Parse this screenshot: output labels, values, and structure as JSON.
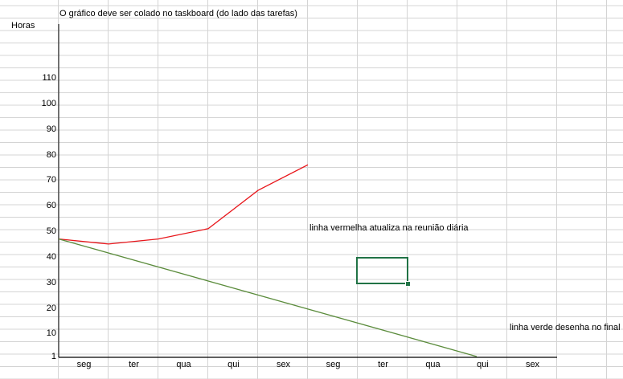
{
  "note_top": "O gráfico deve ser colado no taskboard (do lado das tarefas)",
  "note_red": "linha vermelha atualiza na reunião diária",
  "note_green": "linha verde desenha no final d",
  "colors": {
    "gridline": "#d4d4d4",
    "axis": "#000000",
    "red_line": "#e8161b",
    "green_line": "#5b8c3c",
    "selection": "#217346"
  },
  "chart_data": {
    "type": "line",
    "ylabel": "Horas",
    "yticks": [
      "110",
      "100",
      "90",
      "80",
      "70",
      "60",
      "50",
      "40",
      "30",
      "20",
      "10",
      "1"
    ],
    "categories": [
      "seg",
      "ter",
      "qua",
      "qui",
      "sex",
      "seg",
      "ter",
      "qua",
      "qui",
      "sex"
    ],
    "series": [
      {
        "color": "#e8161b",
        "values": [
          47,
          45,
          47,
          51,
          66,
          76,
          null,
          null,
          null,
          null
        ]
      },
      {
        "color": "#5b8c3c",
        "values": [
          47,
          null,
          null,
          null,
          null,
          null,
          null,
          null,
          1,
          null
        ]
      }
    ]
  }
}
